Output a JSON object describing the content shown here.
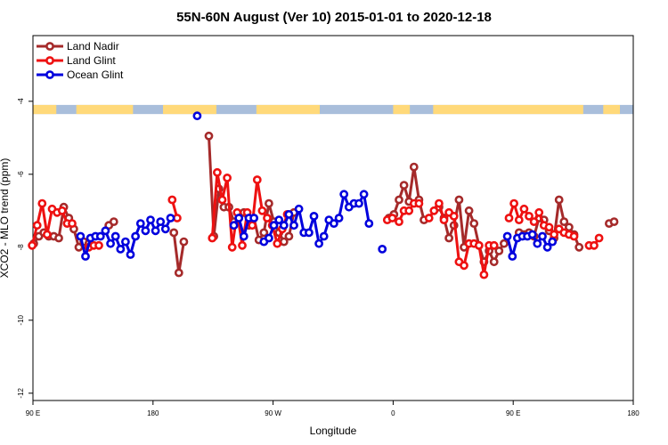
{
  "chart_data": {
    "type": "line",
    "title": "55N-60N August (Ver 10)   2015-01-01 to 2020-12-18",
    "xlabel": "Longitude",
    "ylabel": "XCO2 - MLO trend (ppm)",
    "xlim": [
      -90,
      270
    ],
    "ylim": [
      -12.2,
      -2.2
    ],
    "x_ticks": [
      -90,
      -18,
      54,
      126,
      198,
      270
    ],
    "x_tick_labels": [
      "90 E",
      "180",
      "90 W",
      "0",
      "90 E",
      "180"
    ],
    "y_ticks": [
      -4,
      -6,
      -8,
      -10,
      -12
    ],
    "y_tick_labels": [
      "-4",
      "-6",
      "-8",
      "-10",
      "-12"
    ],
    "legend_position": "top-left",
    "land_mask_band": {
      "y_top": -4.1,
      "y_bottom": -4.35,
      "land_color": "#ffd97a",
      "ocean_color": "#a9bedb"
    },
    "series": [
      {
        "name": "Land Nadir",
        "color": "#a52a2a",
        "segments": [
          [
            [
              -89.5,
              -7.9
            ],
            [
              -86.5,
              -7.7
            ],
            [
              -83.5,
              -7.6
            ],
            [
              -80.5,
              -7.7
            ],
            [
              -77.5,
              -7.7
            ],
            [
              -74.5,
              -7.75
            ],
            [
              -71.5,
              -6.9
            ],
            [
              -68.5,
              -7.2
            ],
            [
              -65.5,
              -7.5
            ],
            [
              -62.5,
              -8.0
            ],
            [
              -59.5,
              -7.85
            ],
            [
              -56.5,
              -7.9
            ]
          ],
          [
            [
              -44.5,
              -7.4
            ],
            [
              -41.5,
              -7.3
            ]
          ],
          [
            [
              -5.5,
              -7.6
            ],
            [
              -2.5,
              -8.7
            ],
            [
              0.5,
              -7.85
            ]
          ],
          [
            [
              15.5,
              -4.95
            ],
            [
              18.5,
              -7.7
            ],
            [
              21.5,
              -6.4
            ],
            [
              24.5,
              -6.9
            ],
            [
              27.5,
              -6.9
            ],
            [
              30.5,
              -7.3
            ],
            [
              33.5,
              -7.2
            ],
            [
              36.5,
              -7.05
            ],
            [
              39.5,
              -7.4
            ],
            [
              42.5,
              -7.2
            ],
            [
              45.5,
              -7.8
            ],
            [
              48.5,
              -7.6
            ],
            [
              51.5,
              -6.8
            ],
            [
              54.5,
              -7.3
            ],
            [
              57.5,
              -7.6
            ],
            [
              60.5,
              -7.85
            ],
            [
              63.5,
              -7.7
            ],
            [
              66.5,
              -7.05
            ]
          ],
          [
            [
              123.5,
              -7.2
            ],
            [
              126.5,
              -7.1
            ],
            [
              129.5,
              -6.7
            ],
            [
              132.5,
              -6.3
            ],
            [
              135.5,
              -6.75
            ],
            [
              138.5,
              -5.8
            ],
            [
              141.5,
              -6.7
            ],
            [
              144.5,
              -7.25
            ]
          ],
          [
            [
              153.5,
              -6.9
            ],
            [
              156.5,
              -7.2
            ],
            [
              159.5,
              -7.75
            ],
            [
              162.5,
              -7.4
            ],
            [
              165.5,
              -6.7
            ],
            [
              168.5,
              -8.0
            ],
            [
              171.5,
              -7.0
            ],
            [
              174.5,
              -7.35
            ],
            [
              177.5,
              -7.95
            ],
            [
              180.5,
              -8.4
            ],
            [
              183.5,
              -8.1
            ],
            [
              186.5,
              -8.4
            ],
            [
              189.5,
              -8.1
            ],
            [
              192.5,
              -7.9
            ]
          ],
          [
            [
              201.5,
              -7.6
            ],
            [
              204.5,
              -7.65
            ],
            [
              207.5,
              -7.6
            ],
            [
              210.5,
              -7.7
            ],
            [
              213.5,
              -7.2
            ],
            [
              216.5,
              -7.25
            ],
            [
              219.5,
              -7.55
            ],
            [
              222.5,
              -7.75
            ],
            [
              225.5,
              -6.7
            ],
            [
              228.5,
              -7.3
            ],
            [
              231.5,
              -7.45
            ],
            [
              234.5,
              -7.65
            ],
            [
              237.5,
              -8.0
            ]
          ],
          [
            [
              255.5,
              -7.35
            ],
            [
              258.5,
              -7.3
            ]
          ]
        ]
      },
      {
        "name": "Land Glint",
        "color": "#ee1111",
        "segments": [
          [
            [
              -90.5,
              -7.95
            ],
            [
              -87.5,
              -7.4
            ],
            [
              -84.5,
              -6.8
            ],
            [
              -81.5,
              -7.65
            ],
            [
              -78.5,
              -6.95
            ],
            [
              -75.5,
              -7.05
            ],
            [
              -72.5,
              -7.0
            ],
            [
              -69.5,
              -7.35
            ],
            [
              -66.5,
              -7.35
            ]
          ],
          [
            [
              -56.5,
              -8.0
            ],
            [
              -53.5,
              -7.95
            ],
            [
              -50.5,
              -7.95
            ]
          ],
          [
            [
              -6.5,
              -6.7
            ],
            [
              -3.5,
              -7.2
            ]
          ],
          [
            [
              17.5,
              -7.75
            ],
            [
              20.5,
              -5.95
            ],
            [
              23.5,
              -6.7
            ],
            [
              26.5,
              -6.1
            ],
            [
              29.5,
              -8.0
            ],
            [
              32.5,
              -7.05
            ],
            [
              35.5,
              -7.95
            ],
            [
              38.5,
              -7.05
            ],
            [
              41.5,
              -7.4
            ],
            [
              44.5,
              -6.15
            ],
            [
              47.5,
              -7.0
            ],
            [
              50.5,
              -7.2
            ],
            [
              53.5,
              -7.4
            ],
            [
              56.5,
              -7.9
            ],
            [
              59.5,
              -7.5
            ],
            [
              62.5,
              -7.1
            ]
          ],
          [
            [
              122.5,
              -7.25
            ],
            [
              125.5,
              -7.2
            ]
          ],
          [
            [
              129.5,
              -7.3
            ],
            [
              132.5,
              -7.0
            ],
            [
              135.5,
              -7.0
            ],
            [
              138.5,
              -6.8
            ],
            [
              141.5,
              -6.8
            ]
          ],
          [
            [
              147.5,
              -7.2
            ],
            [
              150.5,
              -7.0
            ],
            [
              153.5,
              -6.8
            ],
            [
              156.5,
              -7.25
            ],
            [
              159.5,
              -7.05
            ],
            [
              162.5,
              -7.15
            ],
            [
              165.5,
              -8.4
            ],
            [
              168.5,
              -8.5
            ],
            [
              171.5,
              -7.9
            ],
            [
              174.5,
              -7.9
            ],
            [
              177.5,
              -7.95
            ],
            [
              180.5,
              -8.75
            ],
            [
              183.5,
              -7.95
            ],
            [
              186.5,
              -7.95
            ]
          ],
          [
            [
              195.5,
              -7.2
            ],
            [
              198.5,
              -6.8
            ],
            [
              201.5,
              -7.25
            ],
            [
              204.5,
              -6.95
            ],
            [
              207.5,
              -7.15
            ],
            [
              210.5,
              -7.3
            ],
            [
              213.5,
              -7.05
            ],
            [
              216.5,
              -7.4
            ],
            [
              219.5,
              -7.45
            ],
            [
              222.5,
              -7.65
            ],
            [
              225.5,
              -7.5
            ],
            [
              228.5,
              -7.6
            ],
            [
              231.5,
              -7.65
            ],
            [
              234.5,
              -7.7
            ]
          ],
          [
            [
              243.5,
              -7.95
            ],
            [
              246.5,
              -7.95
            ],
            [
              249.5,
              -7.75
            ]
          ]
        ]
      },
      {
        "name": "Ocean Glint",
        "color": "#0000dd",
        "segments": [
          [
            [
              -61.5,
              -7.7
            ],
            [
              -58.5,
              -8.25
            ],
            [
              -55.5,
              -7.75
            ],
            [
              -52.5,
              -7.7
            ],
            [
              -49.5,
              -7.7
            ],
            [
              -46.5,
              -7.55
            ],
            [
              -43.5,
              -7.9
            ],
            [
              -40.5,
              -7.7
            ],
            [
              -37.5,
              -8.05
            ],
            [
              -34.5,
              -7.85
            ],
            [
              -31.5,
              -8.2
            ],
            [
              -28.5,
              -7.7
            ],
            [
              -25.5,
              -7.35
            ],
            [
              -22.5,
              -7.55
            ],
            [
              -19.5,
              -7.25
            ],
            [
              -16.5,
              -7.55
            ],
            [
              -13.5,
              -7.3
            ],
            [
              -10.5,
              -7.5
            ],
            [
              -7.5,
              -7.2
            ]
          ],
          [
            [
              8.5,
              -4.4
            ]
          ],
          [
            [
              30.5,
              -7.4
            ],
            [
              33.5,
              -7.2
            ],
            [
              36.5,
              -7.7
            ],
            [
              39.5,
              -7.2
            ],
            [
              42.5,
              -7.2
            ]
          ],
          [
            [
              48.5,
              -7.85
            ],
            [
              51.5,
              -7.75
            ],
            [
              54.5,
              -7.4
            ],
            [
              57.5,
              -7.25
            ],
            [
              60.5,
              -7.4
            ],
            [
              63.5,
              -7.1
            ],
            [
              66.5,
              -7.4
            ],
            [
              69.5,
              -6.95
            ],
            [
              72.5,
              -7.6
            ],
            [
              75.5,
              -7.6
            ],
            [
              78.5,
              -7.15
            ],
            [
              81.5,
              -7.9
            ],
            [
              84.5,
              -7.7
            ],
            [
              87.5,
              -7.25
            ],
            [
              90.5,
              -7.35
            ],
            [
              93.5,
              -7.2
            ],
            [
              96.5,
              -6.55
            ],
            [
              99.5,
              -6.9
            ],
            [
              102.5,
              -6.8
            ],
            [
              105.5,
              -6.8
            ],
            [
              108.5,
              -6.55
            ],
            [
              111.5,
              -7.35
            ]
          ],
          [
            [
              119.5,
              -8.05
            ]
          ],
          [
            [
              194.5,
              -7.7
            ],
            [
              197.5,
              -8.25
            ],
            [
              200.5,
              -7.75
            ],
            [
              203.5,
              -7.7
            ],
            [
              206.5,
              -7.7
            ],
            [
              209.5,
              -7.65
            ],
            [
              212.5,
              -7.9
            ],
            [
              215.5,
              -7.7
            ],
            [
              218.5,
              -8.0
            ],
            [
              221.5,
              -7.85
            ]
          ]
        ]
      }
    ]
  }
}
